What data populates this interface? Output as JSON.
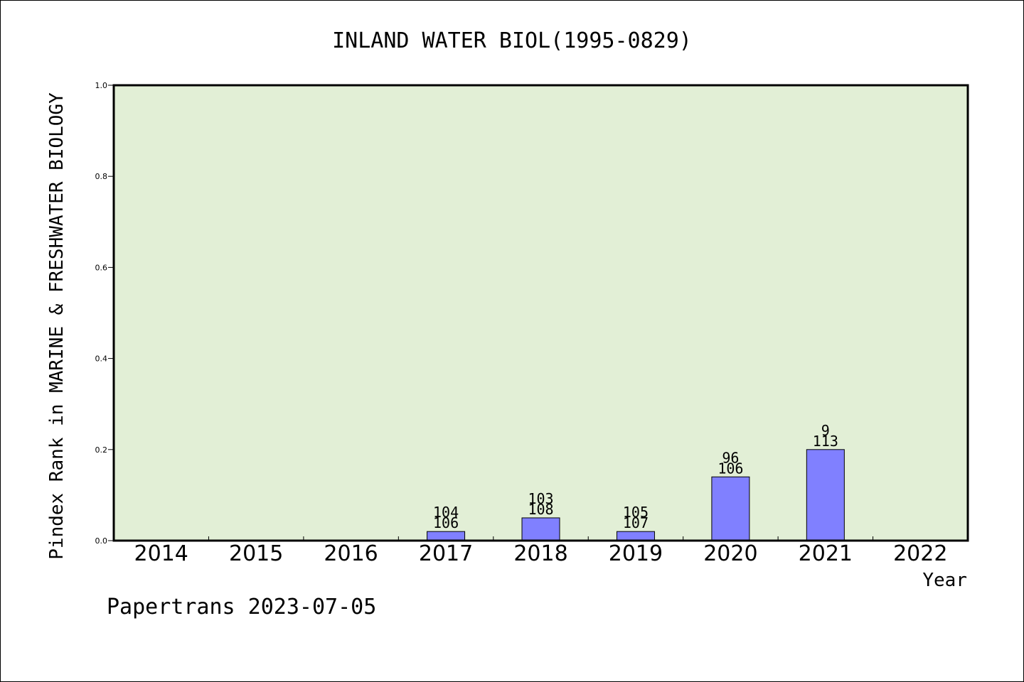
{
  "chart_data": {
    "type": "bar",
    "title": "INLAND WATER BIOL(1995-0829)",
    "xlabel": "Year",
    "ylabel": "Pindex Rank in MARINE & FRESHWATER BIOLOGY",
    "ylim": [
      0.0,
      1.0
    ],
    "yticks": [
      "0.0",
      "0.2",
      "0.4",
      "0.6",
      "0.8",
      "1.0"
    ],
    "categories": [
      "2014",
      "2015",
      "2016",
      "2017",
      "2018",
      "2019",
      "2020",
      "2021",
      "2022"
    ],
    "values": [
      0,
      0,
      0,
      0.02,
      0.05,
      0.02,
      0.14,
      0.2,
      0
    ],
    "labels_top": [
      "",
      "",
      "",
      "104",
      "103",
      "105",
      "96",
      "9",
      ""
    ],
    "labels_bottom": [
      "",
      "",
      "",
      "106",
      "108",
      "107",
      "106",
      "113",
      ""
    ],
    "bar_color": "#8080ff",
    "plot_background": "#e2efd6",
    "grid": false
  },
  "footer": "Papertrans 2023-07-05"
}
